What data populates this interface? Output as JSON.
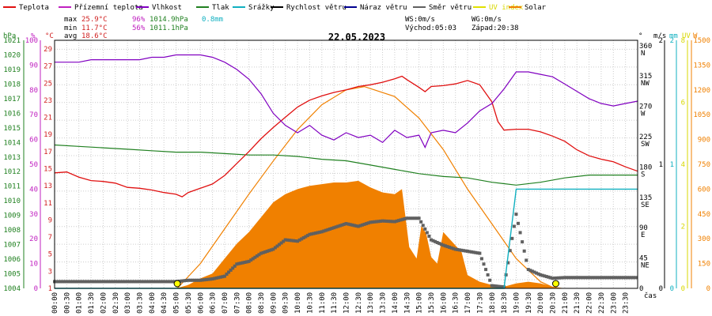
{
  "colors": {
    "teplota": "#e01010",
    "pocitova": "#c020c0",
    "vlhkost": "#8000c0",
    "tlak": "#208020",
    "srazky": "#10b0c0",
    "rychlost": "#000000",
    "naraz": "#000090",
    "smer": "#606060",
    "uv": "#e0e000",
    "solar": "#f08000",
    "axis_temp": "#d02020",
    "axis_hum": "#c020c0",
    "axis_press": "#208020",
    "axis_rain": "#10b0c0",
    "axis_solar": "#f08000",
    "axis_uv": "#d8d800",
    "axis_wind": "#000000",
    "marker": "#ffff00"
  },
  "legend": [
    {
      "label": "Teplota",
      "color_key": "teplota"
    },
    {
      "label": "Přízemní teplota",
      "color_key": "pocitova"
    },
    {
      "label": "Vlhkost",
      "color_key": "vlhkost"
    },
    {
      "label": "Tlak",
      "color_key": "tlak"
    },
    {
      "label": "Srážky",
      "color_key": "srazky"
    },
    {
      "label": "Rychlost větru",
      "color_key": "rychlost"
    },
    {
      "label": "Náraz větru",
      "color_key": "naraz"
    },
    {
      "label": "Směr větru",
      "color_key": "smer"
    },
    {
      "label": "UV index",
      "color_key": "uv"
    },
    {
      "label": "Solar",
      "color_key": "solar"
    }
  ],
  "stats": {
    "max_label": "max",
    "max_temp": "25.9°C",
    "max_hum": "96%",
    "max_press": "1014.9hPa",
    "rain": "0.8mm",
    "min_label": "min",
    "min_temp": "11.7°C",
    "min_hum": "56%",
    "min_press": "1011.1hPa",
    "avg_label": "avg",
    "avg_temp": "18.6°C",
    "ws": "WS:0m/s",
    "wg": "WG:0m/s",
    "sunrise": "Východ:05:03",
    "sunset": "Západ:20:38"
  },
  "date": "22.05.2023",
  "units": {
    "press": "hPa",
    "hum": "%",
    "temp": "°C",
    "dir": "°",
    "wind": "m/s",
    "rain": "mm",
    "uv": "UV",
    "solar": "W",
    "time": "čas"
  },
  "axes": {
    "press": [
      "1004",
      "1005",
      "1006",
      "1007",
      "1008",
      "1009",
      "1010",
      "1011",
      "1012",
      "1013",
      "1014",
      "1015",
      "1016",
      "1017",
      "1018",
      "1019",
      "1020",
      "1021"
    ],
    "hum": [
      "0",
      "10",
      "20",
      "30",
      "40",
      "50",
      "60",
      "70",
      "80",
      "90",
      "100"
    ],
    "temp": [
      "1",
      "3",
      "5",
      "7",
      "9",
      "11",
      "13",
      "15",
      "17",
      "19",
      "21",
      "23",
      "25",
      "27",
      "29"
    ],
    "dir": [
      {
        "v": 0,
        "deg": "0",
        "card": ""
      },
      {
        "v": 45,
        "deg": "45",
        "card": "NE"
      },
      {
        "v": 90,
        "deg": "90",
        "card": "E"
      },
      {
        "v": 135,
        "deg": "135",
        "card": "SE"
      },
      {
        "v": 180,
        "deg": "180",
        "card": "S"
      },
      {
        "v": 225,
        "deg": "225",
        "card": "SW"
      },
      {
        "v": 270,
        "deg": "270",
        "card": "W"
      },
      {
        "v": 315,
        "deg": "315",
        "card": "NW"
      },
      {
        "v": 360,
        "deg": "360",
        "card": "N"
      }
    ],
    "wind": [
      "0",
      "1",
      "2"
    ],
    "rain": [
      "0",
      "1",
      "2"
    ],
    "uv": [
      "0",
      "2",
      "4",
      "6",
      "8"
    ],
    "solar": [
      "0",
      "150",
      "300",
      "450",
      "600",
      "750",
      "900",
      "1050",
      "1200",
      "1350",
      "1500"
    ],
    "time": [
      "00:00",
      "00:30",
      "01:00",
      "01:30",
      "02:00",
      "02:30",
      "03:00",
      "03:30",
      "04:00",
      "04:30",
      "05:00",
      "05:30",
      "06:00",
      "06:30",
      "07:00",
      "07:30",
      "08:00",
      "08:30",
      "09:00",
      "09:30",
      "10:00",
      "10:30",
      "11:00",
      "11:30",
      "12:00",
      "12:30",
      "13:00",
      "13:30",
      "14:00",
      "14:30",
      "15:00",
      "15:30",
      "16:00",
      "16:30",
      "17:00",
      "17:30",
      "18:00",
      "18:30",
      "19:00",
      "19:30",
      "20:00",
      "20:30",
      "21:00",
      "21:30",
      "22:00",
      "22:30",
      "23:00",
      "23:30"
    ]
  },
  "chart_data": {
    "type": "line",
    "title": "22.05.2023",
    "x_unit": "hours",
    "xlim": [
      0,
      24
    ],
    "series": [
      {
        "name": "Teplota",
        "unit": "°C",
        "points": [
          [
            0,
            14.5
          ],
          [
            0.5,
            14.6
          ],
          [
            1,
            14.0
          ],
          [
            1.5,
            13.6
          ],
          [
            2,
            13.5
          ],
          [
            2.5,
            13.3
          ],
          [
            3,
            12.8
          ],
          [
            3.5,
            12.7
          ],
          [
            4,
            12.5
          ],
          [
            4.5,
            12.2
          ],
          [
            5,
            12.0
          ],
          [
            5.25,
            11.7
          ],
          [
            5.5,
            12.2
          ],
          [
            6,
            12.7
          ],
          [
            6.5,
            13.2
          ],
          [
            7,
            14.2
          ],
          [
            7.5,
            15.6
          ],
          [
            8,
            17.0
          ],
          [
            8.5,
            18.5
          ],
          [
            9,
            19.8
          ],
          [
            9.5,
            21.0
          ],
          [
            10,
            22.2
          ],
          [
            10.5,
            23.0
          ],
          [
            11,
            23.5
          ],
          [
            11.5,
            23.9
          ],
          [
            12,
            24.2
          ],
          [
            12.5,
            24.6
          ],
          [
            13,
            24.8
          ],
          [
            13.5,
            25.1
          ],
          [
            14,
            25.5
          ],
          [
            14.3,
            25.8
          ],
          [
            14.5,
            25.4
          ],
          [
            15,
            24.5
          ],
          [
            15.25,
            24.0
          ],
          [
            15.5,
            24.6
          ],
          [
            16,
            24.7
          ],
          [
            16.5,
            24.9
          ],
          [
            17,
            25.3
          ],
          [
            17.5,
            24.8
          ],
          [
            18,
            22.8
          ],
          [
            18.25,
            20.5
          ],
          [
            18.5,
            19.5
          ],
          [
            19,
            19.6
          ],
          [
            19.5,
            19.6
          ],
          [
            20,
            19.3
          ],
          [
            20.5,
            18.8
          ],
          [
            21,
            18.2
          ],
          [
            21.5,
            17.2
          ],
          [
            22,
            16.5
          ],
          [
            22.5,
            16.1
          ],
          [
            23,
            15.8
          ],
          [
            23.5,
            15.2
          ],
          [
            24,
            14.7
          ]
        ]
      },
      {
        "name": "Vlhkost",
        "unit": "%",
        "points": [
          [
            0,
            93
          ],
          [
            0.5,
            93
          ],
          [
            1,
            93
          ],
          [
            1.5,
            94
          ],
          [
            2,
            94
          ],
          [
            2.5,
            94
          ],
          [
            3,
            94
          ],
          [
            3.5,
            94
          ],
          [
            4,
            95
          ],
          [
            4.5,
            95
          ],
          [
            5,
            96
          ],
          [
            5.5,
            96
          ],
          [
            6,
            96
          ],
          [
            6.5,
            95
          ],
          [
            7,
            93
          ],
          [
            7.5,
            90
          ],
          [
            8,
            86
          ],
          [
            8.5,
            80
          ],
          [
            9,
            72
          ],
          [
            9.5,
            67
          ],
          [
            10,
            64
          ],
          [
            10.5,
            67
          ],
          [
            11,
            63
          ],
          [
            11.5,
            61
          ],
          [
            12,
            64
          ],
          [
            12.5,
            62
          ],
          [
            13,
            63
          ],
          [
            13.5,
            60
          ],
          [
            14,
            65
          ],
          [
            14.5,
            62
          ],
          [
            15,
            63
          ],
          [
            15.25,
            58
          ],
          [
            15.5,
            64
          ],
          [
            16,
            65
          ],
          [
            16.5,
            64
          ],
          [
            17,
            68
          ],
          [
            17.5,
            73
          ],
          [
            18,
            76
          ],
          [
            18.5,
            82
          ],
          [
            19,
            89
          ],
          [
            19.5,
            89
          ],
          [
            20,
            88
          ],
          [
            20.5,
            87
          ],
          [
            21,
            84
          ],
          [
            21.5,
            81
          ],
          [
            22,
            78
          ],
          [
            22.5,
            76
          ],
          [
            23,
            75
          ],
          [
            23.5,
            76
          ],
          [
            24,
            77
          ]
        ]
      },
      {
        "name": "Tlak",
        "unit": "hPa",
        "points": [
          [
            0,
            1014.0
          ],
          [
            1,
            1013.9
          ],
          [
            2,
            1013.8
          ],
          [
            3,
            1013.7
          ],
          [
            4,
            1013.6
          ],
          [
            5,
            1013.5
          ],
          [
            6,
            1013.5
          ],
          [
            7,
            1013.4
          ],
          [
            8,
            1013.3
          ],
          [
            9,
            1013.3
          ],
          [
            10,
            1013.2
          ],
          [
            11,
            1013.0
          ],
          [
            12,
            1012.9
          ],
          [
            13,
            1012.6
          ],
          [
            14,
            1012.3
          ],
          [
            15,
            1012.0
          ],
          [
            16,
            1011.8
          ],
          [
            17,
            1011.7
          ],
          [
            18,
            1011.4
          ],
          [
            19,
            1011.2
          ],
          [
            20,
            1011.4
          ],
          [
            21,
            1011.7
          ],
          [
            22,
            1011.9
          ],
          [
            23,
            1011.9
          ],
          [
            24,
            1011.9
          ]
        ]
      },
      {
        "name": "Srážky",
        "unit": "mm",
        "points": [
          [
            0,
            0
          ],
          [
            18.5,
            0
          ],
          [
            19,
            0.8
          ],
          [
            24,
            0.8
          ]
        ]
      },
      {
        "name": "Solar",
        "unit": "W/m²",
        "points": [
          [
            0,
            0
          ],
          [
            5,
            0
          ],
          [
            5.5,
            20
          ],
          [
            6,
            60
          ],
          [
            6.5,
            90
          ],
          [
            7,
            180
          ],
          [
            7.5,
            270
          ],
          [
            8,
            340
          ],
          [
            8.5,
            430
          ],
          [
            9,
            520
          ],
          [
            9.5,
            570
          ],
          [
            10,
            600
          ],
          [
            10.5,
            620
          ],
          [
            11,
            630
          ],
          [
            11.5,
            640
          ],
          [
            12,
            640
          ],
          [
            12.5,
            650
          ],
          [
            13,
            610
          ],
          [
            13.5,
            580
          ],
          [
            14,
            570
          ],
          [
            14.3,
            600
          ],
          [
            14.6,
            250
          ],
          [
            14.9,
            180
          ],
          [
            15.1,
            380
          ],
          [
            15.3,
            330
          ],
          [
            15.5,
            190
          ],
          [
            15.75,
            150
          ],
          [
            16,
            340
          ],
          [
            16.5,
            260
          ],
          [
            16.75,
            220
          ],
          [
            17,
            80
          ],
          [
            17.5,
            40
          ],
          [
            18,
            20
          ],
          [
            18.5,
            10
          ],
          [
            19,
            30
          ],
          [
            19.5,
            40
          ],
          [
            20,
            30
          ],
          [
            20.5,
            10
          ],
          [
            21,
            0
          ],
          [
            24,
            0
          ]
        ]
      },
      {
        "name": "Solar max",
        "unit": "W/m²",
        "points": [
          [
            5.05,
            0
          ],
          [
            6,
            150
          ],
          [
            7,
            360
          ],
          [
            8,
            570
          ],
          [
            9,
            770
          ],
          [
            10,
            960
          ],
          [
            11,
            1110
          ],
          [
            12,
            1200
          ],
          [
            12.75,
            1220
          ],
          [
            14,
            1160
          ],
          [
            15,
            1030
          ],
          [
            16,
            840
          ],
          [
            17,
            600
          ],
          [
            18,
            390
          ],
          [
            19,
            180
          ],
          [
            20,
            40
          ],
          [
            20.6,
            0
          ]
        ]
      },
      {
        "name": "Směr větru",
        "unit": "°",
        "points": [
          [
            0,
            10
          ],
          [
            4.5,
            10
          ],
          [
            5,
            10
          ],
          [
            5.5,
            12
          ],
          [
            6,
            12
          ],
          [
            6.5,
            14
          ],
          [
            7,
            18
          ],
          [
            7.5,
            36
          ],
          [
            8,
            40
          ],
          [
            8.5,
            52
          ],
          [
            9,
            58
          ],
          [
            9.5,
            72
          ],
          [
            10,
            70
          ],
          [
            10.5,
            80
          ],
          [
            11,
            84
          ],
          [
            11.5,
            90
          ],
          [
            12,
            96
          ],
          [
            12.5,
            92
          ],
          [
            13,
            98
          ],
          [
            13.5,
            100
          ],
          [
            14,
            99
          ],
          [
            14.5,
            104
          ],
          [
            15,
            104
          ],
          [
            15.5,
            72
          ],
          [
            16,
            64
          ],
          [
            16.5,
            58
          ],
          [
            17,
            55
          ],
          [
            17.5,
            52
          ],
          [
            18,
            4
          ],
          [
            18.5,
            2
          ],
          [
            19,
            110
          ],
          [
            19.5,
            28
          ],
          [
            20,
            20
          ],
          [
            20.5,
            15
          ],
          [
            21,
            16
          ],
          [
            24,
            16
          ]
        ]
      },
      {
        "name": "UV index",
        "unit": "UV",
        "points": [
          [
            0,
            0
          ],
          [
            24,
            0
          ]
        ]
      }
    ],
    "markers": [
      {
        "name": "Východ",
        "x": 5.05
      },
      {
        "name": "Západ",
        "x": 20.63
      }
    ],
    "ylims": {
      "temp": [
        1,
        30
      ],
      "hum": [
        0,
        102
      ],
      "press": [
        1004,
        1021.3
      ],
      "dir": [
        0,
        368
      ],
      "rain": [
        0,
        2
      ],
      "solar": [
        0,
        1500
      ]
    }
  }
}
